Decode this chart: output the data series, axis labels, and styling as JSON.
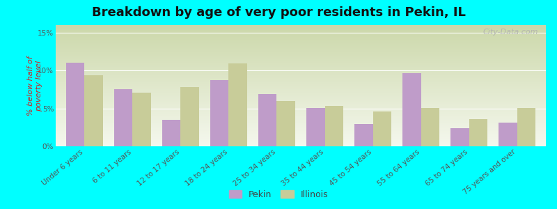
{
  "title": "Breakdown by age of very poor residents in Pekin, IL",
  "ylabel": "% below half of\npoverty level",
  "categories": [
    "Under 6 years",
    "6 to 11 years",
    "12 to 17 years",
    "18 to 24 years",
    "25 to 34 years",
    "35 to 44 years",
    "45 to 54 years",
    "55 to 64 years",
    "65 to 74 years",
    "75 years and over"
  ],
  "pekin_values": [
    11.0,
    7.5,
    3.5,
    8.7,
    6.9,
    5.1,
    2.9,
    9.7,
    2.4,
    3.1
  ],
  "illinois_values": [
    9.4,
    7.1,
    7.8,
    10.9,
    6.0,
    5.3,
    4.6,
    5.1,
    3.6,
    5.1
  ],
  "pekin_color": "#bf9cc9",
  "illinois_color": "#c8cc99",
  "background_color": "#00ffff",
  "ylim": [
    0,
    16
  ],
  "yticks": [
    0,
    5,
    10,
    15
  ],
  "ytick_labels": [
    "0%",
    "5%",
    "10%",
    "15%"
  ],
  "title_fontsize": 13,
  "axis_label_fontsize": 8,
  "tick_fontsize": 7.5,
  "legend_fontsize": 9,
  "watermark": "City-Data.com",
  "bar_width": 0.38
}
